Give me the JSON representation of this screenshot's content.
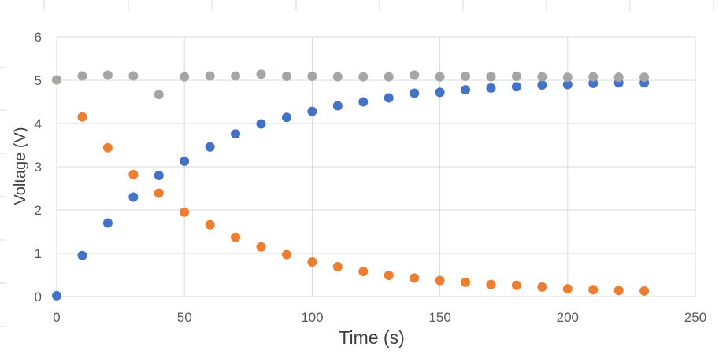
{
  "chart_data": {
    "type": "scatter",
    "title": "",
    "xlabel": "Time (s)",
    "ylabel": "Voltage (V)",
    "xlim": [
      0,
      250
    ],
    "ylim": [
      0,
      6
    ],
    "x_ticks": [
      "0",
      "50",
      "100",
      "150",
      "200",
      "250"
    ],
    "y_ticks": [
      "0",
      "1",
      "2",
      "3",
      "4",
      "5",
      "6"
    ],
    "grid": true,
    "legend": "none",
    "x": [
      0,
      10,
      20,
      30,
      40,
      50,
      60,
      70,
      80,
      90,
      100,
      110,
      120,
      130,
      140,
      150,
      160,
      170,
      180,
      190,
      200,
      210,
      220,
      230
    ],
    "series": [
      {
        "color": "#4472c4",
        "values": [
          0.02,
          0.95,
          1.7,
          2.3,
          2.8,
          3.13,
          3.46,
          3.76,
          3.99,
          4.14,
          4.28,
          4.41,
          4.5,
          4.59,
          4.7,
          4.72,
          4.78,
          4.82,
          4.85,
          4.89,
          4.9,
          4.93,
          4.94,
          4.94
        ]
      },
      {
        "color": "#ed7d31",
        "values": [
          5.01,
          4.15,
          3.44,
          2.82,
          2.39,
          1.95,
          1.66,
          1.37,
          1.15,
          0.97,
          0.8,
          0.69,
          0.58,
          0.49,
          0.43,
          0.37,
          0.33,
          0.28,
          0.26,
          0.22,
          0.18,
          0.16,
          0.14,
          0.13
        ]
      },
      {
        "color": "#a5a5a5",
        "values": [
          5.01,
          5.1,
          5.12,
          5.1,
          4.67,
          5.08,
          5.1,
          5.1,
          5.14,
          5.09,
          5.09,
          5.08,
          5.08,
          5.08,
          5.12,
          5.08,
          5.09,
          5.08,
          5.09,
          5.08,
          5.07,
          5.08,
          5.07,
          5.07
        ]
      }
    ]
  }
}
